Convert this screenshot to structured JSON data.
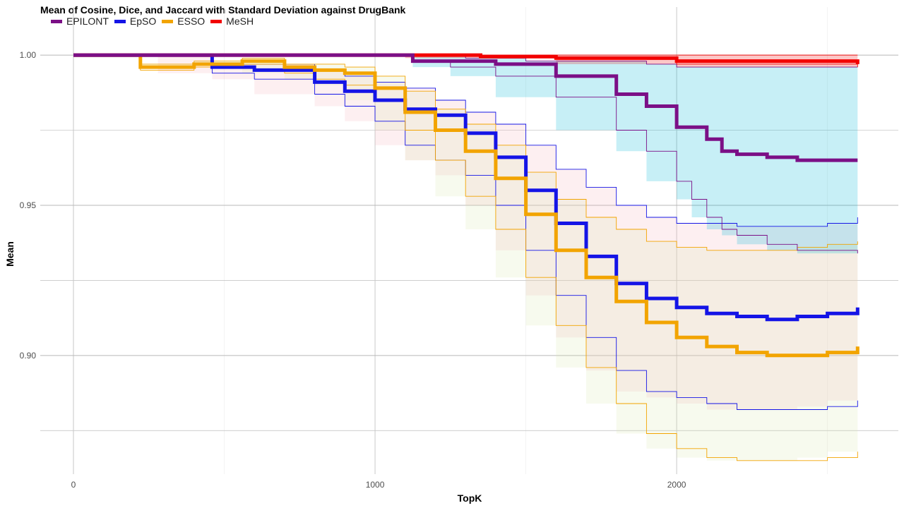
{
  "chart_data": {
    "type": "line",
    "title": "Mean of Cosine, Dice, and Jaccard with Standard Deviation against DrugBank",
    "xlabel": "TopK",
    "ylabel": "Mean",
    "xlim": [
      -110,
      2735
    ],
    "ylim": [
      0.8605,
      1.016
    ],
    "x_ticks": [
      0,
      1000,
      2000
    ],
    "x_tick_labels": [
      "0",
      "1000",
      "2000"
    ],
    "y_ticks": [
      0.9,
      0.95,
      1.0
    ],
    "y_tick_labels": [
      "0.90",
      "0.95",
      "1.00"
    ],
    "y_minor_grid": [
      0.875,
      0.925,
      0.975
    ],
    "x_minor_grid": [
      500,
      1500,
      2500
    ],
    "grid": true,
    "legend_position": "top-left",
    "series": [
      {
        "name": "EPILONT",
        "color": "#7B0F86",
        "fill": "#00B4D8",
        "mean": [
          [
            0,
            1.0
          ],
          [
            1120,
            1.0
          ],
          [
            1125,
            0.998
          ],
          [
            1400,
            0.997
          ],
          [
            1600,
            0.993
          ],
          [
            1800,
            0.987
          ],
          [
            1900,
            0.983
          ],
          [
            2000,
            0.976
          ],
          [
            2100,
            0.972
          ],
          [
            2150,
            0.968
          ],
          [
            2200,
            0.967
          ],
          [
            2300,
            0.966
          ],
          [
            2400,
            0.965
          ],
          [
            2600,
            0.965
          ]
        ],
        "upper": [
          [
            0,
            1.0
          ],
          [
            1120,
            1.0
          ],
          [
            1300,
            0.999
          ],
          [
            1500,
            0.998
          ],
          [
            1700,
            0.998
          ],
          [
            1900,
            0.997
          ],
          [
            2000,
            0.996
          ],
          [
            2200,
            0.996
          ],
          [
            2600,
            0.996
          ]
        ],
        "lower": [
          [
            0,
            1.0
          ],
          [
            1120,
            1.0
          ],
          [
            1125,
            0.998
          ],
          [
            1250,
            0.996
          ],
          [
            1400,
            0.993
          ],
          [
            1600,
            0.986
          ],
          [
            1800,
            0.975
          ],
          [
            1900,
            0.968
          ],
          [
            2000,
            0.958
          ],
          [
            2050,
            0.952
          ],
          [
            2100,
            0.946
          ],
          [
            2150,
            0.942
          ],
          [
            2200,
            0.94
          ],
          [
            2300,
            0.937
          ],
          [
            2400,
            0.935
          ],
          [
            2600,
            0.934
          ]
        ]
      },
      {
        "name": "EpSO",
        "color": "#1414E6",
        "fill": "#F5B7C1",
        "mean": [
          [
            0,
            1.0
          ],
          [
            280,
            1.0
          ],
          [
            460,
            0.996
          ],
          [
            600,
            0.995
          ],
          [
            800,
            0.991
          ],
          [
            900,
            0.988
          ],
          [
            1000,
            0.985
          ],
          [
            1100,
            0.982
          ],
          [
            1200,
            0.98
          ],
          [
            1300,
            0.974
          ],
          [
            1400,
            0.966
          ],
          [
            1500,
            0.955
          ],
          [
            1600,
            0.944
          ],
          [
            1700,
            0.933
          ],
          [
            1800,
            0.924
          ],
          [
            1900,
            0.919
          ],
          [
            2000,
            0.916
          ],
          [
            2100,
            0.914
          ],
          [
            2200,
            0.913
          ],
          [
            2300,
            0.912
          ],
          [
            2400,
            0.913
          ],
          [
            2500,
            0.914
          ],
          [
            2600,
            0.916
          ]
        ],
        "upper": [
          [
            0,
            1.0
          ],
          [
            280,
            1.0
          ],
          [
            460,
            0.997
          ],
          [
            600,
            0.997
          ],
          [
            800,
            0.995
          ],
          [
            900,
            0.993
          ],
          [
            1000,
            0.991
          ],
          [
            1100,
            0.989
          ],
          [
            1200,
            0.985
          ],
          [
            1300,
            0.981
          ],
          [
            1400,
            0.977
          ],
          [
            1500,
            0.97
          ],
          [
            1600,
            0.962
          ],
          [
            1700,
            0.956
          ],
          [
            1800,
            0.95
          ],
          [
            1900,
            0.946
          ],
          [
            2000,
            0.944
          ],
          [
            2100,
            0.944
          ],
          [
            2200,
            0.943
          ],
          [
            2300,
            0.943
          ],
          [
            2400,
            0.943
          ],
          [
            2500,
            0.944
          ],
          [
            2600,
            0.946
          ]
        ],
        "lower": [
          [
            0,
            1.0
          ],
          [
            280,
            1.0
          ],
          [
            460,
            0.994
          ],
          [
            600,
            0.992
          ],
          [
            800,
            0.987
          ],
          [
            900,
            0.983
          ],
          [
            1000,
            0.978
          ],
          [
            1100,
            0.97
          ],
          [
            1200,
            0.965
          ],
          [
            1300,
            0.96
          ],
          [
            1400,
            0.95
          ],
          [
            1500,
            0.935
          ],
          [
            1600,
            0.92
          ],
          [
            1700,
            0.906
          ],
          [
            1800,
            0.895
          ],
          [
            1900,
            0.888
          ],
          [
            2000,
            0.886
          ],
          [
            2100,
            0.884
          ],
          [
            2200,
            0.882
          ],
          [
            2300,
            0.882
          ],
          [
            2400,
            0.882
          ],
          [
            2500,
            0.883
          ],
          [
            2600,
            0.885
          ]
        ]
      },
      {
        "name": "ESSO",
        "color": "#F2A400",
        "fill": "#DCE9B0",
        "mean": [
          [
            0,
            1.0
          ],
          [
            220,
            1.0
          ],
          [
            222,
            0.996
          ],
          [
            400,
            0.997
          ],
          [
            560,
            0.998
          ],
          [
            700,
            0.996
          ],
          [
            800,
            0.995
          ],
          [
            900,
            0.994
          ],
          [
            1000,
            0.989
          ],
          [
            1100,
            0.981
          ],
          [
            1200,
            0.975
          ],
          [
            1300,
            0.968
          ],
          [
            1400,
            0.959
          ],
          [
            1500,
            0.947
          ],
          [
            1600,
            0.935
          ],
          [
            1700,
            0.926
          ],
          [
            1800,
            0.918
          ],
          [
            1900,
            0.911
          ],
          [
            2000,
            0.906
          ],
          [
            2100,
            0.903
          ],
          [
            2200,
            0.901
          ],
          [
            2300,
            0.9
          ],
          [
            2400,
            0.9
          ],
          [
            2500,
            0.901
          ],
          [
            2600,
            0.903
          ]
        ],
        "upper": [
          [
            0,
            1.0
          ],
          [
            220,
            1.0
          ],
          [
            222,
            0.997
          ],
          [
            400,
            0.998
          ],
          [
            560,
            0.999
          ],
          [
            700,
            0.997
          ],
          [
            800,
            0.997
          ],
          [
            900,
            0.996
          ],
          [
            1000,
            0.993
          ],
          [
            1100,
            0.988
          ],
          [
            1200,
            0.982
          ],
          [
            1300,
            0.977
          ],
          [
            1400,
            0.97
          ],
          [
            1500,
            0.961
          ],
          [
            1600,
            0.952
          ],
          [
            1700,
            0.946
          ],
          [
            1800,
            0.942
          ],
          [
            1900,
            0.938
          ],
          [
            2000,
            0.936
          ],
          [
            2100,
            0.935
          ],
          [
            2200,
            0.935
          ],
          [
            2300,
            0.935
          ],
          [
            2400,
            0.936
          ],
          [
            2500,
            0.937
          ],
          [
            2600,
            0.938
          ]
        ],
        "lower": [
          [
            0,
            1.0
          ],
          [
            220,
            1.0
          ],
          [
            222,
            0.995
          ],
          [
            400,
            0.996
          ],
          [
            560,
            0.997
          ],
          [
            700,
            0.994
          ],
          [
            800,
            0.992
          ],
          [
            900,
            0.99
          ],
          [
            1000,
            0.985
          ],
          [
            1100,
            0.975
          ],
          [
            1200,
            0.965
          ],
          [
            1300,
            0.953
          ],
          [
            1400,
            0.942
          ],
          [
            1500,
            0.926
          ],
          [
            1600,
            0.91
          ],
          [
            1700,
            0.896
          ],
          [
            1800,
            0.884
          ],
          [
            1900,
            0.874
          ],
          [
            2000,
            0.869
          ],
          [
            2100,
            0.866
          ],
          [
            2200,
            0.865
          ],
          [
            2300,
            0.865
          ],
          [
            2400,
            0.865
          ],
          [
            2500,
            0.866
          ],
          [
            2600,
            0.868
          ]
        ]
      },
      {
        "name": "MeSH",
        "color": "#F20000",
        "fill": "#F20000",
        "mean": [
          [
            0,
            1.0
          ],
          [
            1100,
            1.0
          ],
          [
            1350,
            0.9995
          ],
          [
            1600,
            0.999
          ],
          [
            2000,
            0.998
          ],
          [
            2300,
            0.998
          ],
          [
            2500,
            0.998
          ],
          [
            2600,
            0.997
          ]
        ],
        "upper": [
          [
            0,
            1.0
          ],
          [
            2600,
            1.0
          ]
        ],
        "lower": [
          [
            0,
            1.0
          ],
          [
            1100,
            1.0
          ],
          [
            1600,
            0.999
          ],
          [
            2000,
            0.997
          ],
          [
            2600,
            0.996
          ]
        ]
      }
    ]
  }
}
